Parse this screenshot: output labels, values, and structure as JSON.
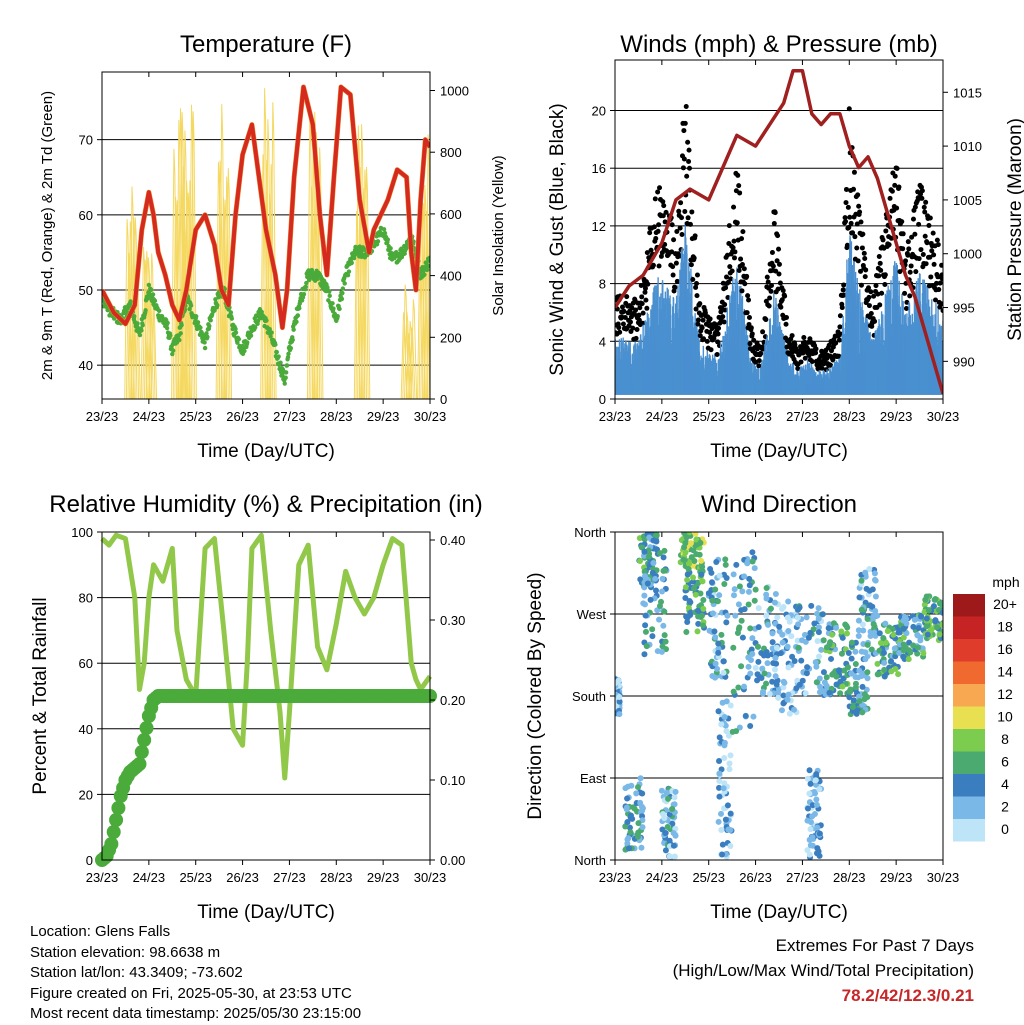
{
  "chart_data": [
    {
      "id": "temperature",
      "type": "line",
      "title": "Temperature (F)",
      "xlabel": "Time (Day/UTC)",
      "ylabel": "2m & 9m T (Red, Orange) & 2m Td (Green)",
      "ylabel_right": "Solar Insolation (Yellow)",
      "x_ticks": [
        "23/23",
        "24/23",
        "25/23",
        "26/23",
        "27/23",
        "28/23",
        "29/23",
        "30/23"
      ],
      "xlim": [
        0,
        7
      ],
      "ylim": [
        35.5,
        79
      ],
      "ylim_right": [
        0,
        1060
      ],
      "y_ticks": [
        40,
        50,
        60,
        70
      ],
      "y_ticks_right": [
        0,
        200,
        400,
        600,
        800,
        1000
      ],
      "grid": "horizontal",
      "colors": {
        "temp2m": "#d42a20",
        "temp9m": "#f08a2a",
        "dewpoint": "#4aaa3a",
        "solar": "#f5d860"
      },
      "series": [
        {
          "name": "2m T",
          "color": "#d42a20",
          "x": [
            0,
            0.25,
            0.5,
            0.7,
            0.85,
            1.0,
            1.1,
            1.2,
            1.35,
            1.5,
            1.65,
            1.8,
            2.0,
            2.2,
            2.4,
            2.55,
            2.7,
            2.85,
            3.0,
            3.2,
            3.5,
            3.7,
            3.85,
            3.95,
            4.1,
            4.3,
            4.5,
            4.65,
            4.8,
            4.95,
            5.1,
            5.3,
            5.5,
            5.7,
            5.8,
            5.95,
            6.1,
            6.3,
            6.5,
            6.6,
            6.7,
            6.8,
            6.9,
            7.0
          ],
          "y": [
            50,
            47,
            45.5,
            48,
            58,
            63,
            60,
            55,
            52,
            48,
            46,
            50,
            58,
            60,
            56,
            50,
            48,
            60,
            68,
            72,
            58,
            52,
            45,
            50,
            65,
            77,
            72,
            60,
            52,
            65,
            77,
            76,
            62,
            55,
            58,
            60,
            62,
            66,
            65,
            55,
            50,
            62,
            70,
            69
          ]
        },
        {
          "name": "Td",
          "color": "#4aaa3a",
          "x": [
            0,
            0.2,
            0.4,
            0.6,
            0.8,
            1.0,
            1.2,
            1.4,
            1.5,
            1.65,
            1.8,
            2.0,
            2.2,
            2.4,
            2.6,
            2.8,
            3.0,
            3.2,
            3.4,
            3.6,
            3.8,
            3.9,
            4.0,
            4.2,
            4.4,
            4.6,
            4.8,
            5.0,
            5.2,
            5.4,
            5.6,
            5.8,
            6.0,
            6.2,
            6.4,
            6.6,
            6.8,
            7.0
          ],
          "y": [
            49,
            47,
            46,
            48,
            44,
            50,
            47,
            45,
            42,
            44,
            49,
            46,
            43,
            48,
            50,
            45,
            42,
            45,
            47,
            44,
            40,
            38,
            42,
            48,
            52,
            52,
            50,
            46,
            52,
            55,
            55,
            56,
            58,
            54,
            55,
            57,
            52,
            54
          ]
        }
      ],
      "solar_peak_positions": [
        0.65,
        1.0,
        1.65,
        1.85,
        2.6,
        3.55,
        4.55,
        5.55,
        6.55,
        6.9
      ],
      "solar_peak_values": [
        690,
        520,
        1000,
        990,
        1040,
        1020,
        1000,
        1030,
        380,
        940
      ]
    },
    {
      "id": "winds",
      "type": "scatter",
      "title": "Winds (mph) & Pressure (mb)",
      "xlabel": "Time (Day/UTC)",
      "ylabel": "Sonic Wind & Gust (Blue, Black)",
      "ylabel_right": "Station Pressure (Maroon)",
      "x_ticks": [
        "23/23",
        "24/23",
        "25/23",
        "26/23",
        "27/23",
        "28/23",
        "29/23",
        "30/23"
      ],
      "xlim": [
        0,
        7
      ],
      "ylim": [
        0,
        23.5
      ],
      "ylim_right": [
        986.5,
        1018
      ],
      "y_ticks": [
        0,
        4,
        8,
        12,
        16,
        20
      ],
      "y_ticks_right": [
        990,
        995,
        1000,
        1005,
        1010,
        1015
      ],
      "grid": "horizontal",
      "colors": {
        "wind": "#4a90d0",
        "gust": "#000000",
        "pressure": "#a02020"
      },
      "pressure": {
        "x": [
          0,
          0.3,
          0.6,
          1.0,
          1.3,
          1.6,
          2.0,
          2.3,
          2.6,
          3.0,
          3.3,
          3.6,
          3.8,
          4.0,
          4.2,
          4.4,
          4.6,
          4.8,
          5.0,
          5.2,
          5.4,
          5.6,
          5.8,
          6.0,
          6.2,
          6.4,
          6.6,
          6.8,
          7.0
        ],
        "y": [
          995,
          997,
          998,
          1001,
          1005,
          1006,
          1005,
          1008,
          1011,
          1010,
          1012,
          1014,
          1017,
          1017,
          1013,
          1012,
          1013,
          1013,
          1010,
          1008,
          1009,
          1007,
          1004,
          1001,
          998,
          996,
          993,
          990,
          987
        ]
      }
    },
    {
      "id": "humidity",
      "type": "line",
      "title": "Relative Humidity (%) & Precipitation (in)",
      "xlabel": "Time (Day/UTC)",
      "ylabel": "Percent & Total Rainfall",
      "x_ticks": [
        "23/23",
        "24/23",
        "25/23",
        "26/23",
        "27/23",
        "28/23",
        "29/23",
        "30/23"
      ],
      "xlim": [
        0,
        7
      ],
      "ylim": [
        0,
        100
      ],
      "ylim_right": [
        0,
        0.41
      ],
      "y_ticks": [
        0,
        20,
        40,
        60,
        80,
        100
      ],
      "y_ticks_right": [
        "0.00",
        "0.10",
        "0.20",
        "0.30",
        "0.40"
      ],
      "grid": "horizontal",
      "colors": {
        "rh": "#92c84a",
        "precip": "#4aaa3a"
      },
      "series": [
        {
          "name": "RH",
          "color": "#92c84a",
          "x": [
            0,
            0.15,
            0.3,
            0.5,
            0.7,
            0.8,
            0.9,
            1.0,
            1.1,
            1.3,
            1.5,
            1.6,
            1.8,
            2.0,
            2.2,
            2.4,
            2.6,
            2.8,
            3.0,
            3.1,
            3.2,
            3.4,
            3.6,
            3.8,
            3.9,
            4.0,
            4.2,
            4.4,
            4.6,
            4.8,
            5.0,
            5.2,
            5.4,
            5.6,
            5.8,
            6.0,
            6.2,
            6.4,
            6.6,
            6.7,
            6.8,
            7.0
          ],
          "y": [
            98,
            96,
            99,
            98,
            80,
            52,
            60,
            80,
            90,
            85,
            95,
            70,
            55,
            50,
            95,
            98,
            70,
            40,
            35,
            60,
            95,
            99,
            70,
            45,
            25,
            45,
            90,
            96,
            65,
            58,
            72,
            88,
            80,
            75,
            80,
            90,
            98,
            96,
            60,
            55,
            52,
            56
          ]
        },
        {
          "name": "Precip",
          "color": "#4aaa3a",
          "x": [
            0,
            0.1,
            0.2,
            0.3,
            0.4,
            0.5,
            0.6,
            0.7,
            0.8,
            0.9,
            1.0,
            1.1,
            1.2,
            1.5,
            2.0,
            3.0,
            4.0,
            5.0,
            6.0,
            7.0
          ],
          "y": [
            0.0,
            0.005,
            0.02,
            0.05,
            0.08,
            0.1,
            0.11,
            0.115,
            0.12,
            0.15,
            0.18,
            0.2,
            0.205,
            0.205,
            0.205,
            0.205,
            0.205,
            0.205,
            0.205,
            0.205
          ]
        }
      ]
    },
    {
      "id": "direction",
      "type": "scatter",
      "title": "Wind Direction",
      "xlabel": "Time (Day/UTC)",
      "ylabel": "Direction (Colored By Speed)",
      "x_ticks": [
        "23/23",
        "24/23",
        "25/23",
        "26/23",
        "27/23",
        "28/23",
        "29/23",
        "30/23"
      ],
      "xlim": [
        0,
        7
      ],
      "ylim": [
        0,
        360
      ],
      "y_tick_values": [
        0,
        90,
        180,
        270,
        360
      ],
      "y_tick_labels": [
        "North",
        "East",
        "South",
        "West",
        "North"
      ],
      "grid": "horizontal",
      "legend": {
        "title": "mph",
        "labels": [
          "20+",
          "18",
          "16",
          "14",
          "12",
          "10",
          "8",
          "6",
          "4",
          "2",
          "0"
        ],
        "colors": [
          "#9e1a1a",
          "#c62424",
          "#e03c2c",
          "#f06a30",
          "#f8a850",
          "#e8e050",
          "#7ccc50",
          "#4aaa70",
          "#3a7ec0",
          "#7ab8e8",
          "#bee4f8"
        ]
      }
    }
  ],
  "info": {
    "location": "Location: Glens Falls",
    "elevation": "Station elevation: 98.6638 m",
    "latlon": "Station lat/lon: 43.3409; -73.602",
    "created": "Figure created on Fri, 2025-05-30, at 23:53 UTC",
    "recent": "Most recent data timestamp: 2025/05/30 23:15:00"
  },
  "extremes": {
    "title": "Extremes For Past 7 Days",
    "subtitle": "(High/Low/Max Wind/Total Precipitation)",
    "values": "78.2/42/12.3/0.21"
  }
}
